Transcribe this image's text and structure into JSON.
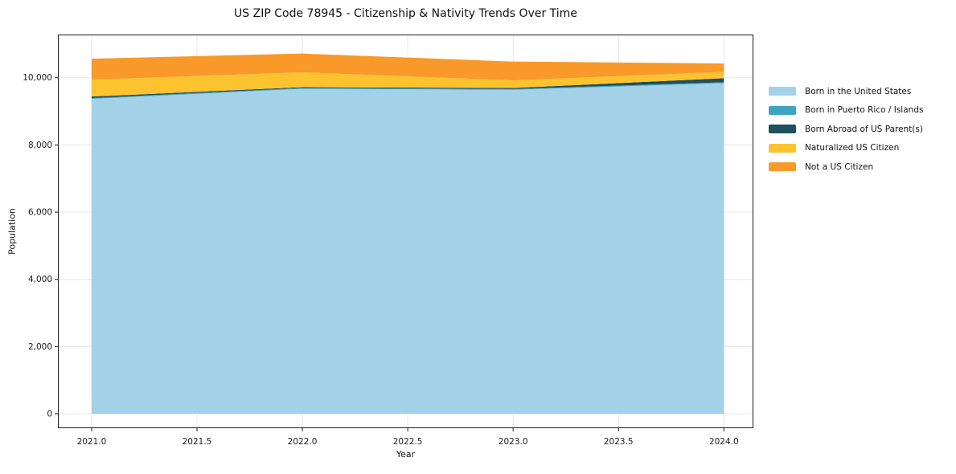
{
  "chart_data": {
    "type": "area",
    "stacked": true,
    "title": "US ZIP Code 78945 - Citizenship & Nativity Trends Over Time",
    "xlabel": "Year",
    "ylabel": "Population",
    "x": [
      2021,
      2022,
      2023,
      2024
    ],
    "series": [
      {
        "name": "Born in the United States",
        "color": "#a3d1e8",
        "values": [
          9370,
          9670,
          9640,
          9840
        ]
      },
      {
        "name": "Born in Puerto Rico / Islands",
        "color": "#3da5c2",
        "values": [
          25,
          25,
          25,
          25
        ]
      },
      {
        "name": "Born Abroad of US Parent(s)",
        "color": "#1f4e5f",
        "values": [
          45,
          25,
          30,
          120
        ]
      },
      {
        "name": "Naturalized US Citizen",
        "color": "#fdc32f",
        "values": [
          505,
          440,
          225,
          190
        ]
      },
      {
        "name": "Not a US Citizen",
        "color": "#f8992a",
        "values": [
          620,
          560,
          560,
          250
        ]
      }
    ],
    "x_ticks": [
      "2021.0",
      "2021.5",
      "2022.0",
      "2022.5",
      "2023.0",
      "2023.5",
      "2024.0"
    ],
    "x_tick_values": [
      2021,
      2021.5,
      2022,
      2022.5,
      2023,
      2023.5,
      2024
    ],
    "y_ticks": [
      "0",
      "2,000",
      "4,000",
      "6,000",
      "8,000",
      "10,000"
    ],
    "y_tick_values": [
      0,
      2000,
      4000,
      6000,
      8000,
      10000
    ],
    "xlim": [
      2020.84,
      2024.14
    ],
    "ylim": [
      -430,
      11285
    ],
    "grid": true,
    "legend_position": "right",
    "colors": {
      "grid": "#e6e6e6",
      "spine": "#1a1a1a",
      "tick_label": "#1a1a1a",
      "background": "#ffffff"
    }
  }
}
